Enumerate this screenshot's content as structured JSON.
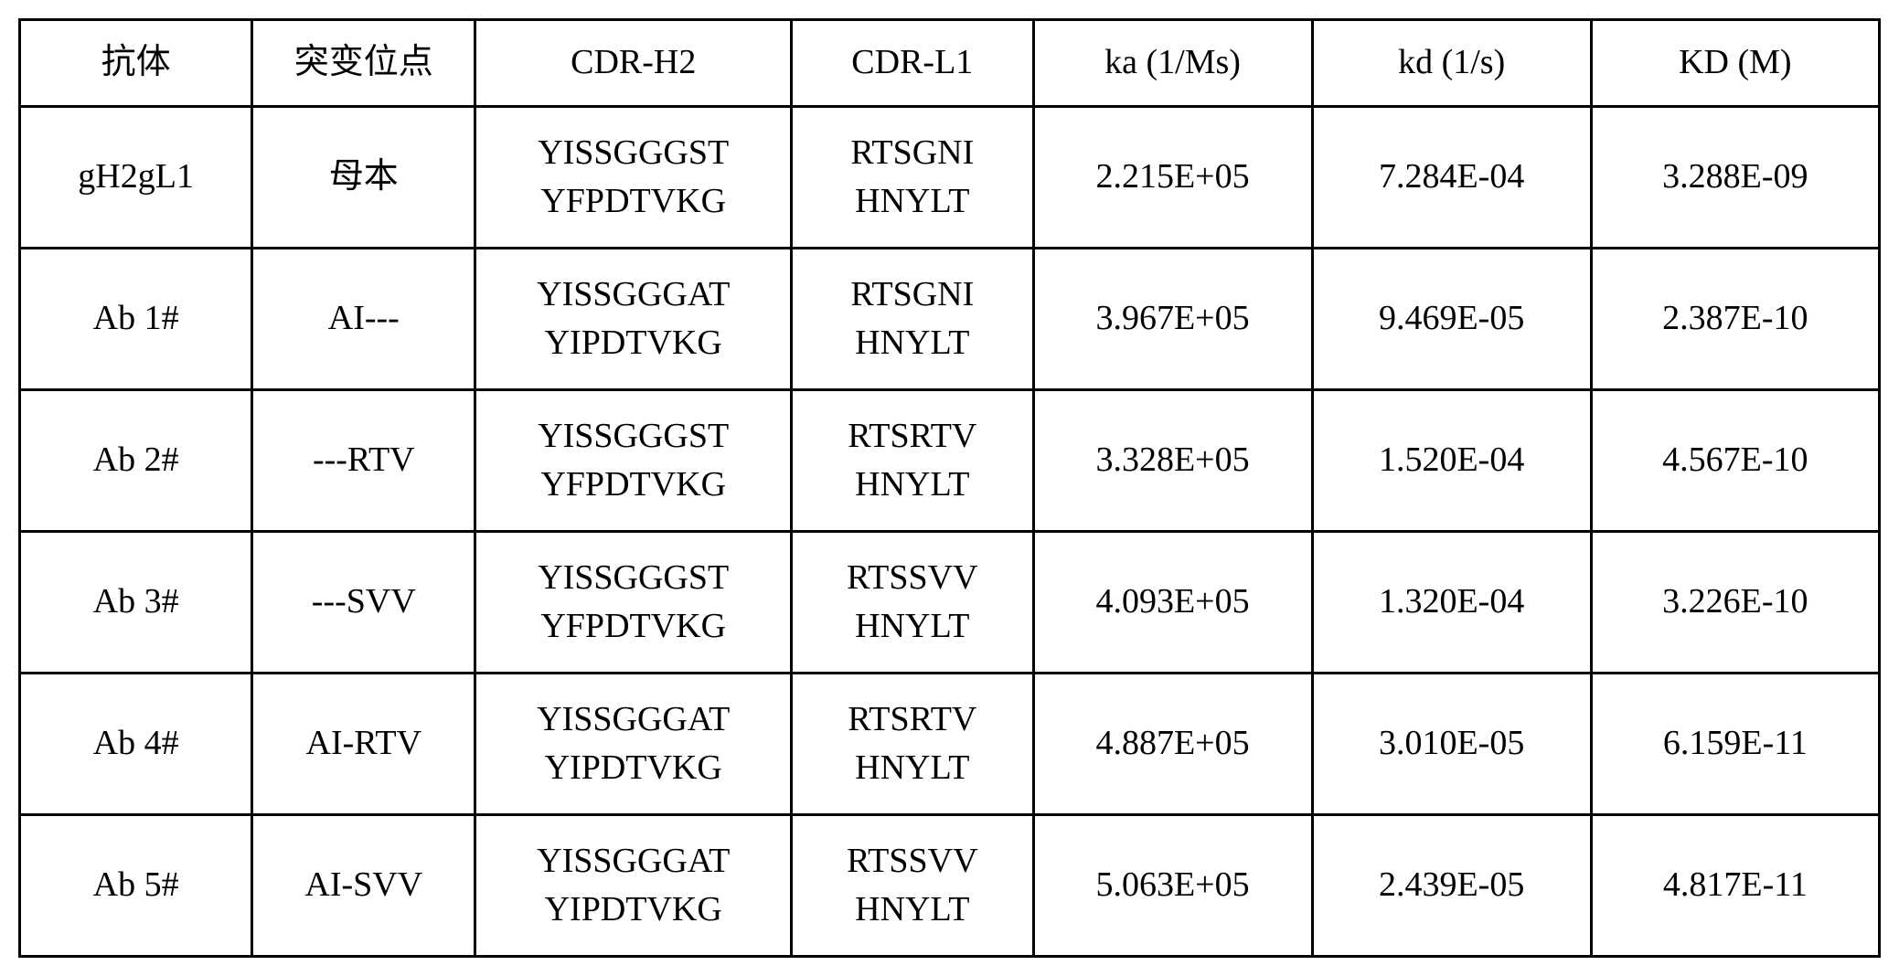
{
  "table": {
    "headers": {
      "antibody": "抗体",
      "mutation": "突变位点",
      "cdrh2": "CDR-H2",
      "cdrl1": "CDR-L1",
      "ka": "ka (1/Ms)",
      "kd": "kd (1/s)",
      "kdm": "KD (M)"
    },
    "rows": [
      {
        "antibody": "gH2gL1",
        "mutation": "母本",
        "cdrh2_line1": "YISSGGGST",
        "cdrh2_line2": "YFPDTVKG",
        "cdrl1_line1": "RTSGNI",
        "cdrl1_line2": "HNYLT",
        "ka": "2.215E+05",
        "kd": "7.284E-04",
        "kdm": "3.288E-09"
      },
      {
        "antibody": "Ab 1#",
        "mutation": "AI---",
        "cdrh2_line1": "YISSGGGAT",
        "cdrh2_line2": "YIPDTVKG",
        "cdrl1_line1": "RTSGNI",
        "cdrl1_line2": "HNYLT",
        "ka": "3.967E+05",
        "kd": "9.469E-05",
        "kdm": "2.387E-10"
      },
      {
        "antibody": "Ab 2#",
        "mutation": "---RTV",
        "cdrh2_line1": "YISSGGGST",
        "cdrh2_line2": "YFPDTVKG",
        "cdrl1_line1": "RTSRTV",
        "cdrl1_line2": "HNYLT",
        "ka": "3.328E+05",
        "kd": "1.520E-04",
        "kdm": "4.567E-10"
      },
      {
        "antibody": "Ab 3#",
        "mutation": "---SVV",
        "cdrh2_line1": "YISSGGGST",
        "cdrh2_line2": "YFPDTVKG",
        "cdrl1_line1": "RTSSVV",
        "cdrl1_line2": "HNYLT",
        "ka": "4.093E+05",
        "kd": "1.320E-04",
        "kdm": "3.226E-10"
      },
      {
        "antibody": "Ab 4#",
        "mutation": "AI-RTV",
        "cdrh2_line1": "YISSGGGAT",
        "cdrh2_line2": "YIPDTVKG",
        "cdrl1_line1": "RTSRTV",
        "cdrl1_line2": "HNYLT",
        "ka": "4.887E+05",
        "kd": "3.010E-05",
        "kdm": "6.159E-11"
      },
      {
        "antibody": "Ab 5#",
        "mutation": "AI-SVV",
        "cdrh2_line1": "YISSGGGAT",
        "cdrh2_line2": "YIPDTVKG",
        "cdrl1_line1": "RTSSVV",
        "cdrl1_line2": "HNYLT",
        "ka": "5.063E+05",
        "kd": "2.439E-05",
        "kdm": "4.817E-11"
      }
    ],
    "styling": {
      "border_color": "#000000",
      "border_width": 3,
      "background_color": "#ffffff",
      "text_color": "#000000",
      "font_size": 38,
      "font_family": "Times New Roman, SimSun, serif",
      "header_row_height": 95,
      "data_row_height": 155,
      "column_widths_percent": {
        "antibody": 12.5,
        "mutation": 12,
        "cdrh2": 17,
        "cdrl1": 13,
        "ka": 15,
        "kd": 15,
        "kdm": 15.5
      }
    }
  }
}
